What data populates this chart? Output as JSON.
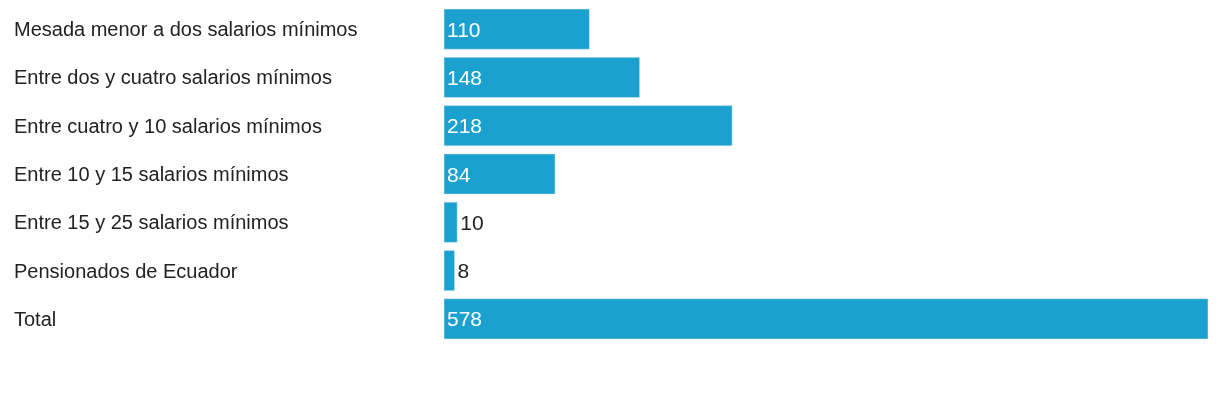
{
  "chart_data": {
    "type": "bar",
    "orientation": "horizontal",
    "categories": [
      "Mesada menor a dos salarios mínimos",
      "Entre dos y cuatro salarios mínimos",
      "Entre cuatro y 10 salarios mínimos",
      "Entre 10 y 15 salarios mínimos",
      "Entre 15 y 25 salarios mínimos",
      "Pensionados de Ecuador",
      "Total"
    ],
    "values": [
      110,
      148,
      218,
      84,
      10,
      8,
      578
    ],
    "color": "#1ba1cf",
    "data_labels": true
  }
}
